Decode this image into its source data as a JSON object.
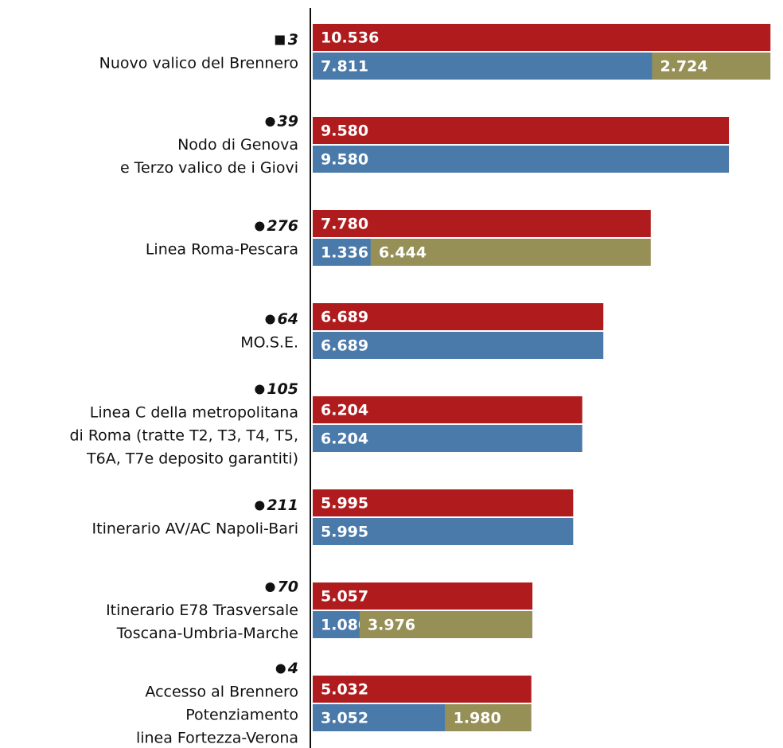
{
  "chart_data": {
    "type": "bar",
    "categories": [
      "Nuovo valico del Brennero",
      "Nodo di Genova\ne Terzo valico de i Giovi",
      "Linea Roma-Pescara",
      "MO.S.E.",
      "Linea C della metropolitana\ndi Roma (tratte T2, T3, T4, T5,\nT6A, T7e deposito garantiti)",
      "Itinerario AV/AC Napoli-Bari",
      "Itinerario E78 Trasversale\nToscana-Umbria-Marche",
      "Accesso al Brennero\nPotenziamento\nlinea Fortezza-Verona"
    ],
    "ids": [
      "3",
      "39",
      "276",
      "64",
      "105",
      "211",
      "70",
      "4"
    ],
    "id_markers": [
      "square",
      "circle",
      "circle",
      "circle",
      "circle",
      "circle",
      "circle",
      "circle"
    ],
    "series": [
      {
        "color": "#b01c1e",
        "row": 0,
        "values": [
          10536,
          9580,
          7780,
          6689,
          6204,
          5995,
          5057,
          5032
        ],
        "value_labels": [
          "10.536",
          "9.580",
          "7.780",
          "6.689",
          "6.204",
          "5.995",
          "5.057",
          "5.032"
        ]
      },
      {
        "color": "#4a7aaa",
        "row": 1,
        "values": [
          7811,
          9580,
          1336,
          6689,
          6204,
          5995,
          1080,
          3052
        ],
        "value_labels": [
          "7.811",
          "9.580",
          "1.336",
          "6.689",
          "6.204",
          "5.995",
          "1.080",
          "3.052"
        ]
      },
      {
        "color": "#968f56",
        "row": 1,
        "stacked": true,
        "values": [
          2724,
          null,
          6444,
          null,
          null,
          null,
          3976,
          1980
        ],
        "value_labels": [
          "2.724",
          null,
          "6.444",
          null,
          null,
          null,
          "3.976",
          "1.980"
        ]
      }
    ]
  }
}
